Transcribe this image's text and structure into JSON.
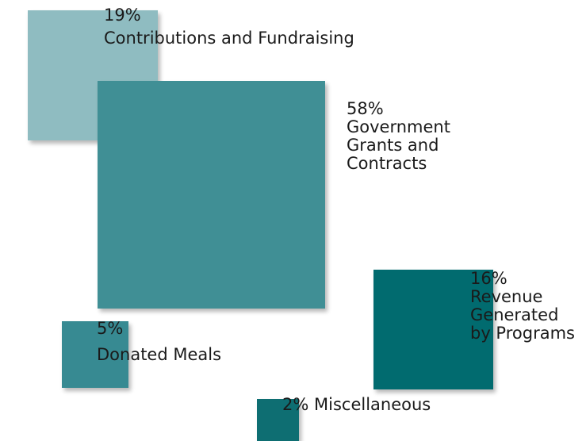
{
  "chart_data": {
    "type": "area",
    "categories": [
      "Contributions and Fundraising",
      "Government Grants and Contracts",
      "Revenue Generated by Programs",
      "Donated Meals",
      "Miscellaneous"
    ],
    "values": [
      19,
      58,
      16,
      5,
      2
    ],
    "unit": "%",
    "colors": [
      "#8fbcc1",
      "#408f95",
      "#016b6f",
      "#378a92",
      "#0e6e72"
    ]
  },
  "labels": {
    "contributions": {
      "pct": "19%",
      "name": "Contributions and Fundraising"
    },
    "government": {
      "pct": "58%",
      "line1": "Government",
      "line2": "Grants and",
      "line3": "Contracts"
    },
    "programs": {
      "pct": "16%",
      "line1": "Revenue",
      "line2": "Generated",
      "line3": "by Programs"
    },
    "meals": {
      "pct": "5%",
      "name": "Donated Meals"
    },
    "misc": {
      "pct": "2%",
      "name": "Miscellaneous"
    }
  }
}
